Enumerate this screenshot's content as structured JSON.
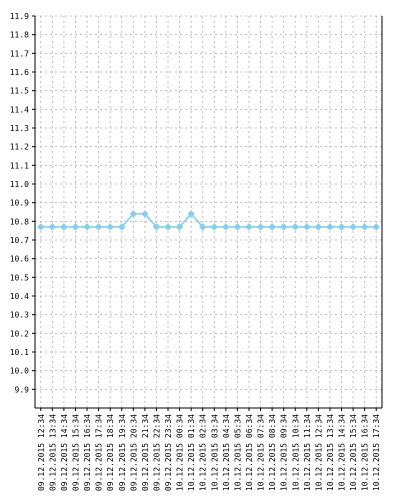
{
  "chart_data": {
    "type": "line",
    "title": "",
    "xlabel": "",
    "ylabel": "",
    "ylim": [
      9.8,
      11.9
    ],
    "y_ticks": [
      9.9,
      10.0,
      10.1,
      10.2,
      10.3,
      10.4,
      10.5,
      10.6,
      10.7,
      10.8,
      10.9,
      11.0,
      11.1,
      11.2,
      11.3,
      11.4,
      11.5,
      11.6,
      11.7,
      11.8,
      11.9
    ],
    "y_tick_labels": [
      "9.9",
      "10.0",
      "10.1",
      "10.2",
      "10.3",
      "10.4",
      "10.5",
      "10.6",
      "10.7",
      "10.8",
      "10.9",
      "11.0",
      "11.1",
      "11.2",
      "11.3",
      "11.4",
      "11.5",
      "11.6",
      "11.7",
      "11.8",
      "11.9"
    ],
    "x": [
      "09.12.2015 12:34",
      "09.12.2015 13:34",
      "09.12.2015 14:34",
      "09.12.2015 15:34",
      "09.12.2015 16:34",
      "09.12.2015 17:34",
      "09.12.2015 18:34",
      "09.12.2015 19:34",
      "09.12.2015 20:34",
      "09.12.2015 21:34",
      "09.12.2015 22:34",
      "09.12.2015 23:34",
      "10.12.2015 00:34",
      "10.12.2015 01:34",
      "10.12.2015 02:34",
      "10.12.2015 03:34",
      "10.12.2015 04:34",
      "10.12.2015 05:34",
      "10.12.2015 06:34",
      "10.12.2015 07:34",
      "10.12.2015 08:34",
      "10.12.2015 09:34",
      "10.12.2015 10:34",
      "10.12.2015 11:34",
      "10.12.2015 12:34",
      "10.12.2015 13:34",
      "10.12.2015 14:34",
      "10.12.2015 15:34",
      "10.12.2015 16:34",
      "10.12.2015 17:34"
    ],
    "series": [
      {
        "values": [
          10.77,
          10.77,
          10.77,
          10.77,
          10.77,
          10.77,
          10.77,
          10.77,
          10.84,
          10.84,
          10.77,
          10.77,
          10.77,
          10.84,
          10.77,
          10.77,
          10.77,
          10.77,
          10.77,
          10.77,
          10.77,
          10.77,
          10.77,
          10.77,
          10.77,
          10.77,
          10.77,
          10.77,
          10.77,
          10.77
        ],
        "color": "#87ceeb"
      }
    ],
    "grid": true,
    "legend": "none",
    "colors": {
      "series": "#87ceeb",
      "grid": "#bdbdbd",
      "axis": "#000000",
      "background": "#ffffff"
    }
  }
}
